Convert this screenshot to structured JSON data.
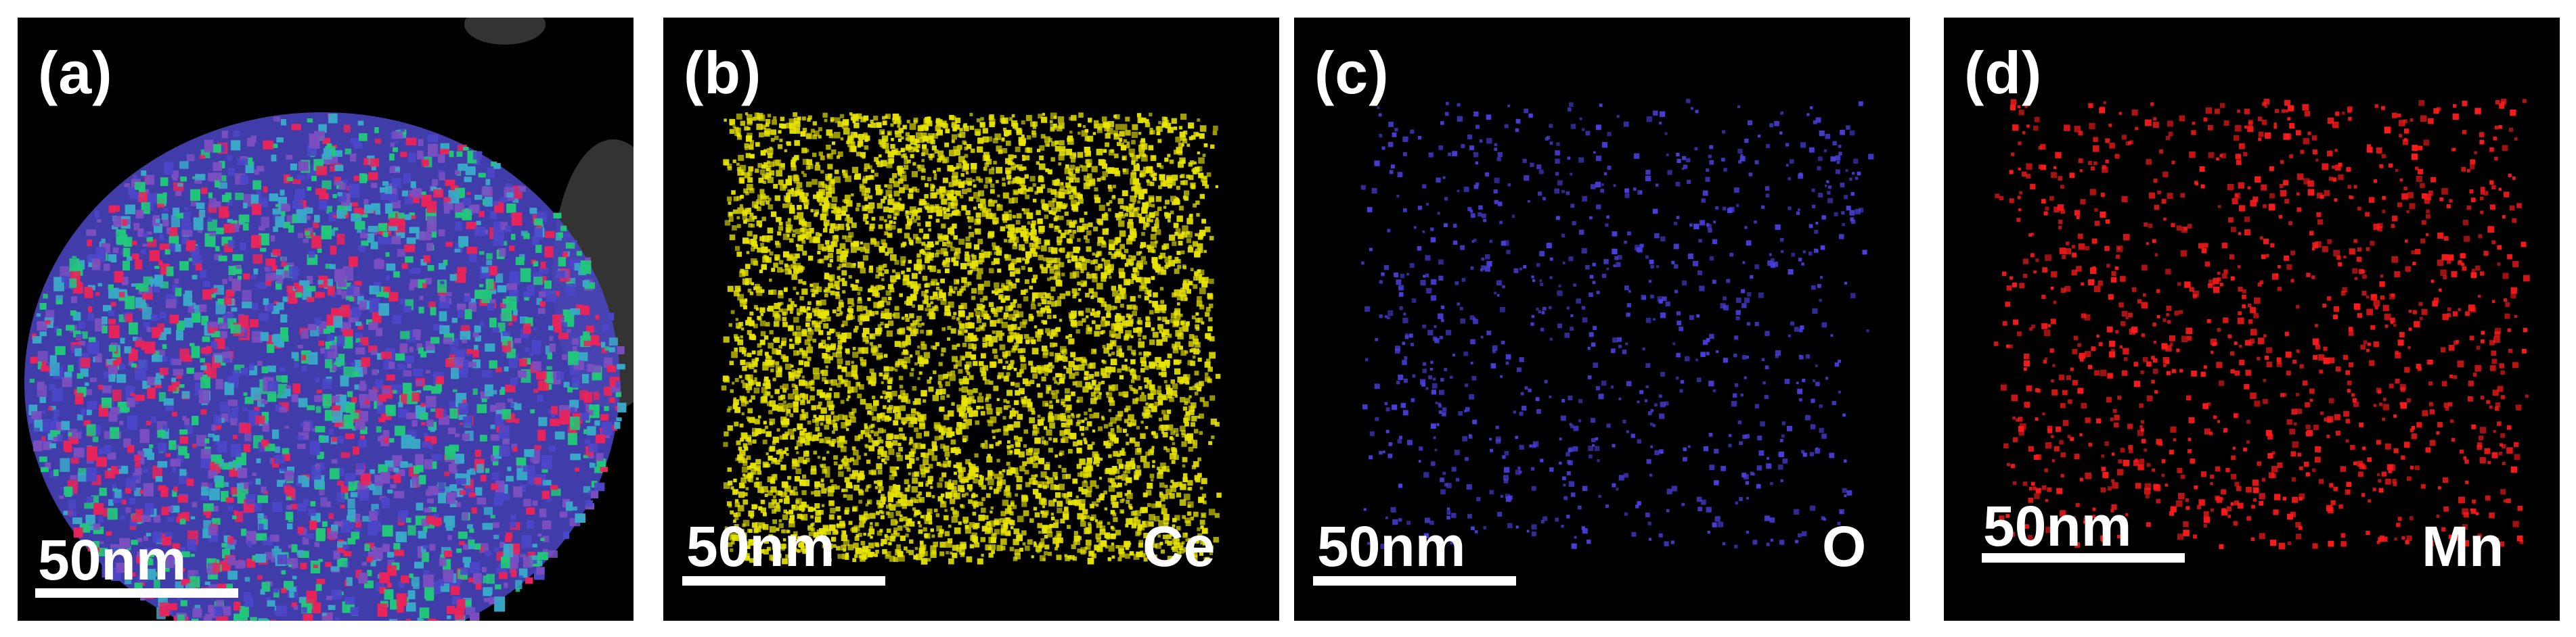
{
  "figure": {
    "panels": [
      {
        "label": "(a)",
        "scale_text": "50nm",
        "element": "",
        "dot_color": "#5a4fd8",
        "map": "overlay"
      },
      {
        "label": "(b)",
        "scale_text": "50nm",
        "element": "Ce",
        "dot_color": "#e8e400",
        "map": "Ce"
      },
      {
        "label": "(c)",
        "scale_text": "50nm",
        "element": "O",
        "dot_color": "#4a3fe0",
        "map": "O"
      },
      {
        "label": "(d)",
        "scale_text": "50nm",
        "element": "Mn",
        "dot_color": "#ff1a1a",
        "map": "Mn"
      }
    ],
    "overlay_colors": {
      "base": "#4b46c8",
      "green": "#22c77a",
      "red": "#e8245a",
      "cyan": "#3aa8c8"
    }
  }
}
